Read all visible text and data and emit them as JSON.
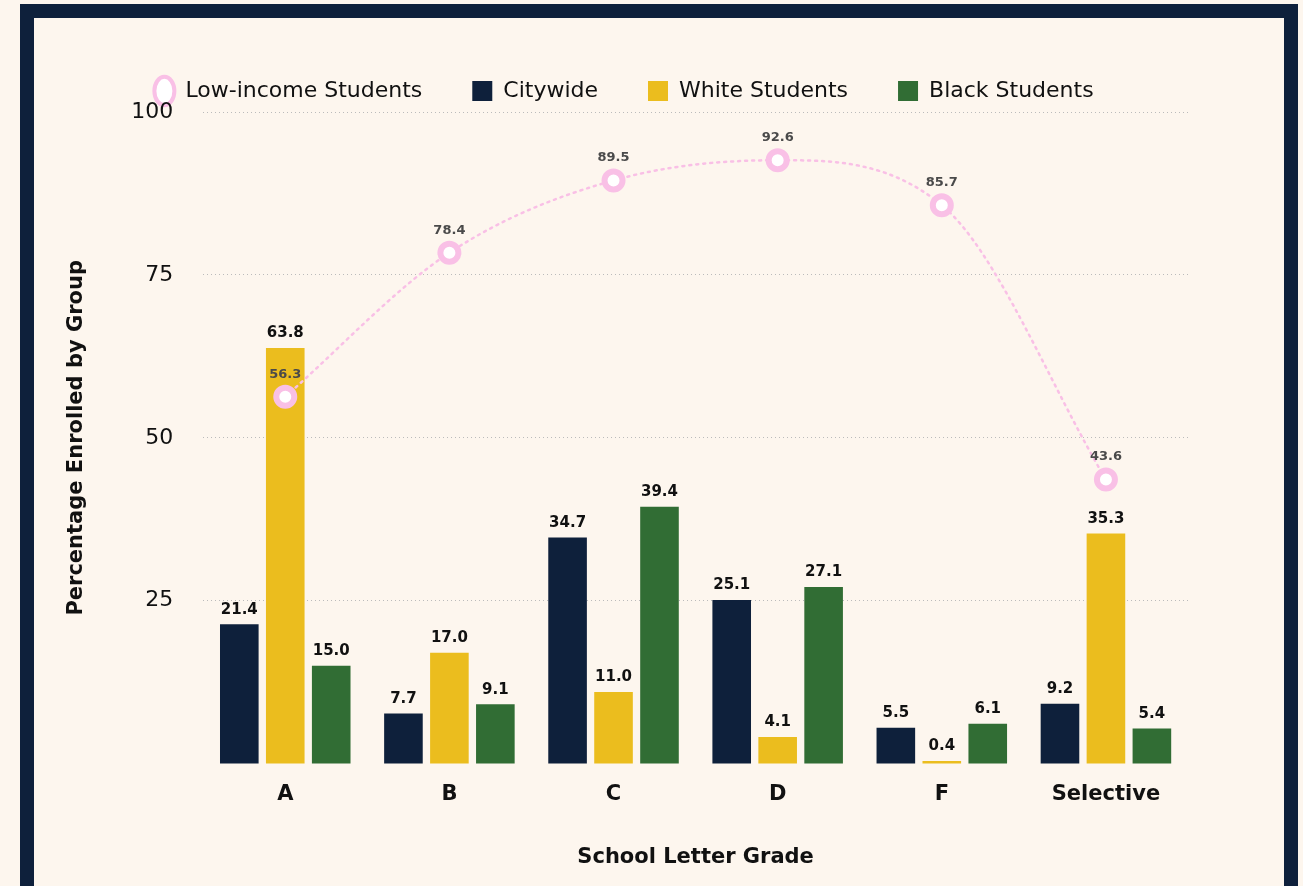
{
  "chart_data": {
    "type": "bar",
    "xlabel": "School Letter Grade",
    "ylabel": "Percentage Enrolled by Group",
    "categories": [
      "A",
      "B",
      "C",
      "D",
      "F",
      "Selective"
    ],
    "series": [
      {
        "name": "Low-income Students",
        "type": "line",
        "color": "#f9c0e6",
        "values": [
          56.3,
          78.4,
          89.5,
          92.6,
          85.7,
          43.6
        ],
        "value_labels": [
          "56.3",
          "78.4",
          "89.5",
          "92.6",
          "85.7",
          "43.6"
        ],
        "marker": "circle",
        "line_style": "dotted"
      },
      {
        "name": "Citywide",
        "color": "#0e203b",
        "values": [
          21.4,
          7.7,
          34.7,
          25.1,
          5.5,
          9.2
        ],
        "value_labels": [
          "21.4",
          "7.7",
          "34.7",
          "25.1",
          "5.5",
          "9.2"
        ]
      },
      {
        "name": "White Students",
        "color": "#ebbd1e",
        "values": [
          63.8,
          17.0,
          11.0,
          4.1,
          0.4,
          35.3
        ],
        "value_labels": [
          "63.8",
          "17.0",
          "11.0",
          "4.1",
          "0.4",
          "35.3"
        ]
      },
      {
        "name": "Black Students",
        "color": "#316d34",
        "values": [
          15.0,
          9.1,
          39.4,
          27.1,
          6.1,
          5.4
        ],
        "value_labels": [
          "15.0",
          "9.1",
          "39.4",
          "27.1",
          "6.1",
          "5.4"
        ]
      }
    ],
    "ylim": [
      0,
      100
    ],
    "yticks": [
      25,
      50,
      75,
      100
    ],
    "grid": "y",
    "legend": "top"
  }
}
